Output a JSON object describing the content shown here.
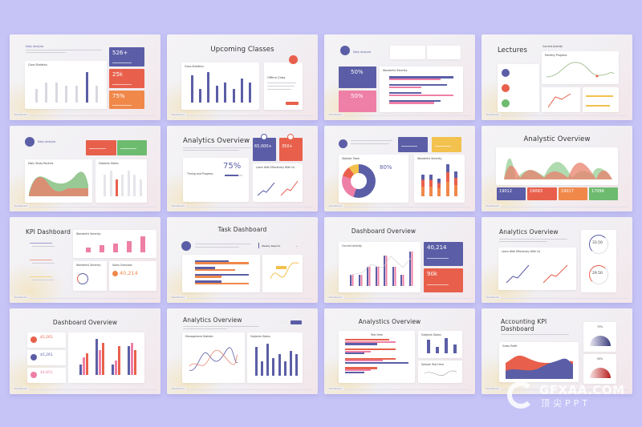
{
  "colors": {
    "background": "#c6c4f6",
    "purple": "#5b5ea6",
    "red": "#e8604c",
    "orange": "#f0884a",
    "pink": "#ee7fa6",
    "green": "#6dbb6f",
    "yellow": "#f2c14e"
  },
  "footer_label": "Dashboard",
  "slides": [
    {
      "caption": "Daily Analysis",
      "chart_title": "Class Statistics",
      "kpis": [
        "526+",
        "25k",
        "75%"
      ],
      "bars": [
        4,
        6,
        6,
        5,
        5,
        9,
        5
      ]
    },
    {
      "title": "Upcoming Classes",
      "chart_title": "Class Statistics",
      "card_title": "Offline Class",
      "bars": [
        8,
        4,
        9,
        5,
        6,
        4,
        7,
        6
      ]
    },
    {
      "caption": "Daily Analysis",
      "chart_title": "Wonderful Serenity",
      "kpis": [
        "50%",
        "50%"
      ],
      "hbars": [
        [
          10,
          8
        ],
        [
          9,
          5
        ],
        [
          5,
          10
        ],
        [
          8,
          7
        ]
      ]
    },
    {
      "title": "Lectures",
      "chart_title": "Current Activity",
      "sub_title": "Monthly Progress"
    },
    {
      "caption": "Daily Analysis",
      "chart_title": "Daily Study Routine",
      "chart2_title": "Subjects Status",
      "bars": [
        5,
        6,
        4,
        5,
        6,
        5,
        4
      ]
    },
    {
      "title": "Analytics Overview",
      "kpis": [
        "65,000+",
        "350+"
      ],
      "card_title": "Timing and Progress",
      "percent": "75%",
      "chart_title": "Learn With Effectively With Us"
    },
    {
      "chart_title": "Statistic Team",
      "percent": "80%",
      "chart2_title": "Wonderful Serenity",
      "bars": [
        6,
        6,
        5,
        9,
        7
      ]
    },
    {
      "title": "Analystic Overview",
      "kpis": [
        "19012",
        "19093",
        "19017",
        "17096"
      ]
    },
    {
      "title": "KPI Dashboard",
      "chart_title": "Wonderful Serenity",
      "card_title": "Wonderful Serenity",
      "card2_title": "Sales Overview",
      "value": "40,214",
      "bars": [
        2,
        3,
        4,
        5,
        7
      ]
    },
    {
      "title": "Task Dashboard",
      "dropdown": "Weekly Reports",
      "hbars": [
        [
          5,
          8
        ],
        [
          3,
          6
        ],
        [
          8,
          4
        ],
        [
          4,
          8
        ]
      ]
    },
    {
      "title": "Dashboard Overview",
      "chart_title": "Current Activity",
      "kpis": [
        "40,214",
        "90k"
      ],
      "bars": [
        3,
        3,
        5,
        5,
        8,
        5,
        3,
        9
      ]
    },
    {
      "title": "Analytics Overview",
      "chart_title": "Learn With Effectively With Us",
      "gauges": [
        "33.50",
        "29.50"
      ]
    },
    {
      "title": "Dashboard Overview",
      "values": [
        "$5,261",
        "$5,261",
        "$4,851"
      ],
      "bars": [
        [
          3,
          5,
          6
        ],
        [
          10,
          7,
          9
        ],
        [
          3,
          4,
          8
        ],
        [
          8,
          9,
          7
        ]
      ]
    },
    {
      "title": "Analytics Overview",
      "chart_title": "Management Statistic",
      "chart2_title": "Subjects Status",
      "bars": [
        8,
        4,
        9,
        5,
        6,
        4,
        7,
        6
      ]
    },
    {
      "title": "Analystics Overview",
      "chart_title": "Text Here",
      "chart2_title": "Subjects Status",
      "chart3_title": "Sample Text Here",
      "hbars": [
        [
          7,
          8,
          5
        ],
        [
          8,
          4,
          3
        ],
        [
          8,
          6,
          10
        ],
        [
          5,
          4,
          3
        ]
      ],
      "bars": [
        8,
        4,
        9,
        5
      ]
    },
    {
      "title": "Accounting KPI Dashboard",
      "chart_title": "Gross Profit",
      "gauges": [
        "75%",
        "50%"
      ]
    }
  ],
  "watermark": {
    "text": "GFXAA.COM",
    "sub": "顶尖PPT"
  }
}
